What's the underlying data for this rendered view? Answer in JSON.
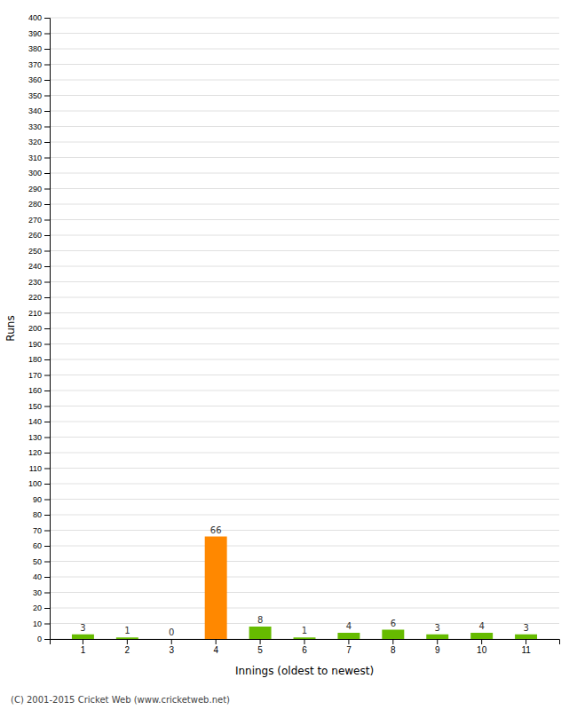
{
  "chart_data": {
    "type": "bar",
    "xlabel": "Innings (oldest to newest)",
    "ylabel": "Runs",
    "categories": [
      "1",
      "2",
      "3",
      "4",
      "5",
      "6",
      "7",
      "8",
      "9",
      "10",
      "11"
    ],
    "values": [
      3,
      1,
      0,
      66,
      8,
      1,
      4,
      6,
      3,
      4,
      3
    ],
    "colors": [
      "#66bb00",
      "#66bb00",
      "#66bb00",
      "#ff8800",
      "#66bb00",
      "#66bb00",
      "#66bb00",
      "#66bb00",
      "#66bb00",
      "#66bb00",
      "#66bb00"
    ],
    "ylim": [
      0,
      400
    ],
    "yticks": [
      0,
      10,
      20,
      30,
      40,
      50,
      60,
      70,
      80,
      90,
      100,
      110,
      120,
      130,
      140,
      150,
      160,
      170,
      180,
      190,
      200,
      210,
      220,
      230,
      240,
      250,
      260,
      270,
      280,
      290,
      300,
      310,
      320,
      330,
      340,
      350,
      360,
      370,
      380,
      390,
      400
    ],
    "grid": true,
    "data_labels": true,
    "footer": "(C) 2001-2015 Cricket Web (www.cricketweb.net)"
  }
}
